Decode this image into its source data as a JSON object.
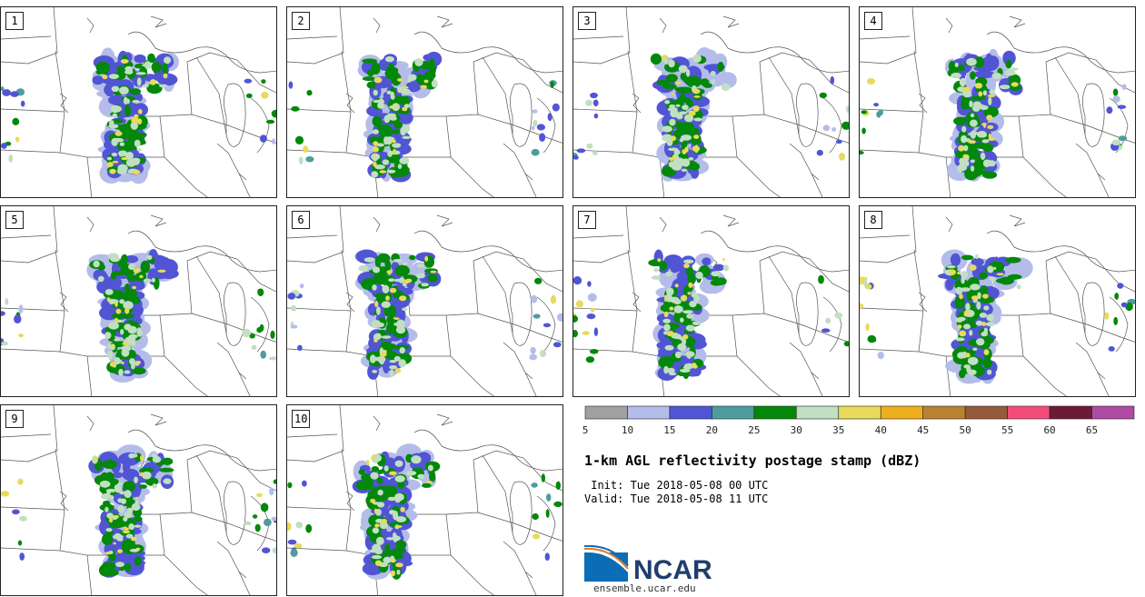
{
  "panels": [
    {
      "label": "1"
    },
    {
      "label": "2"
    },
    {
      "label": "3"
    },
    {
      "label": "4"
    },
    {
      "label": "5"
    },
    {
      "label": "6"
    },
    {
      "label": "7"
    },
    {
      "label": "8"
    },
    {
      "label": "9"
    },
    {
      "label": "10"
    }
  ],
  "colorbar": {
    "levels": [
      5,
      10,
      15,
      20,
      25,
      30,
      35,
      40,
      45,
      50,
      55,
      60,
      65,
      70
    ],
    "tick_labels": [
      "5",
      "10",
      "15",
      "20",
      "25",
      "30",
      "35",
      "40",
      "45",
      "50",
      "55",
      "60",
      "65"
    ],
    "colors": [
      "#a0a0a0",
      "#b4bde9",
      "#5155d4",
      "#4e9c9e",
      "#04880a",
      "#c1dfc1",
      "#e8da5b",
      "#efaf1c",
      "#b88330",
      "#955a3c",
      "#f44c7a",
      "#6c1b37",
      "#b04ba4"
    ]
  },
  "title": "1-km AGL reflectivity postage stamp (dBZ)",
  "init": " Init: Tue 2018-05-08 00 UTC",
  "valid": "Valid: Tue 2018-05-08 11 UTC",
  "logo": {
    "name": "NCAR",
    "site": "ensemble.ucar.edu"
  }
}
